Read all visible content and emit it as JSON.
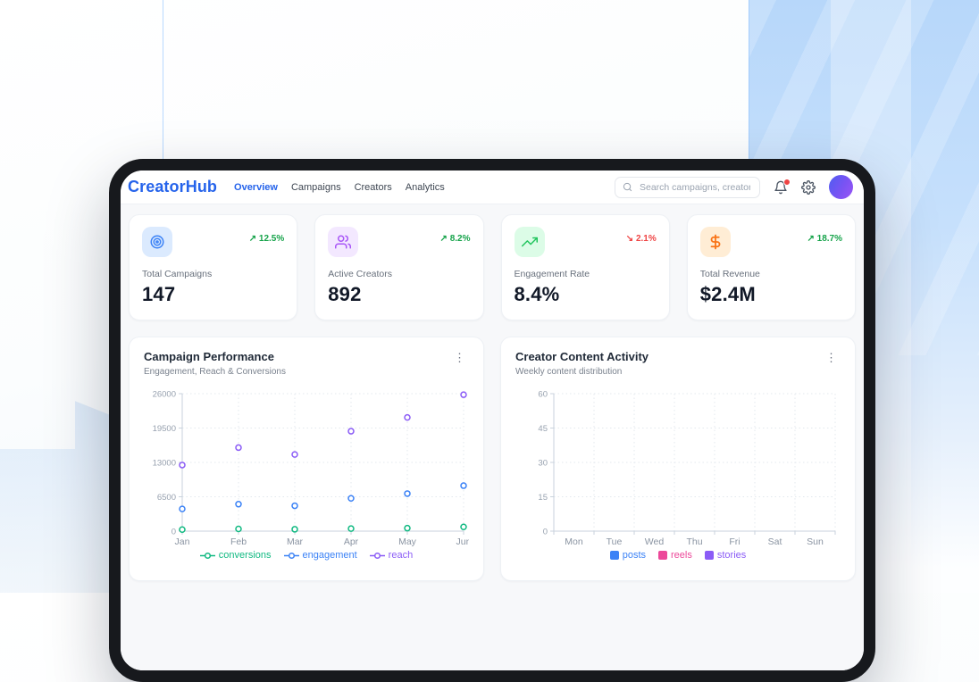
{
  "colors": {
    "accent": "#2563eb",
    "positive": "#16a34a",
    "negative": "#ef4444",
    "frame": "#17191d",
    "bg_blue": "#b7d7fa"
  },
  "icons": {
    "kebab": "⋮"
  },
  "header": {
    "logo": "CreatorHub",
    "nav": [
      {
        "label": "Overview",
        "active": true
      },
      {
        "label": "Campaigns",
        "active": false
      },
      {
        "label": "Creators",
        "active": false
      },
      {
        "label": "Analytics",
        "active": false
      }
    ],
    "search": {
      "placeholder": "Search campaigns, creators..."
    },
    "has_notification_dot": true
  },
  "stats": [
    {
      "label": "Total Campaigns",
      "value": "147",
      "trend_icon": "↗",
      "change": "12.5%",
      "direction": "up",
      "icon": "target",
      "icon_color": "#3b82f6",
      "icon_bg": "#dbeafe"
    },
    {
      "label": "Active Creators",
      "value": "892",
      "trend_icon": "↗",
      "change": "8.2%",
      "direction": "up",
      "icon": "users",
      "icon_color": "#a855f7",
      "icon_bg": "#f3e8ff"
    },
    {
      "label": "Engagement Rate",
      "value": "8.4%",
      "trend_icon": "↘",
      "change": "2.1%",
      "direction": "down",
      "icon": "trending-up",
      "icon_color": "#22c55e",
      "icon_bg": "#dcfce7"
    },
    {
      "label": "Total Revenue",
      "value": "$2.4M",
      "trend_icon": "↗",
      "change": "18.7%",
      "direction": "up",
      "icon": "dollar-sign",
      "icon_color": "#f97316",
      "icon_bg": "#ffedd5"
    }
  ],
  "chart_data": [
    {
      "type": "scatter",
      "title": "Campaign Performance",
      "subtitle": "Engagement, Reach & Conversions",
      "x": [
        "Jan",
        "Feb",
        "Mar",
        "Apr",
        "May",
        "Jun"
      ],
      "series": [
        {
          "name": "conversions",
          "color": "#10b981",
          "values": [
            300,
            420,
            350,
            480,
            560,
            800
          ]
        },
        {
          "name": "engagement",
          "color": "#3b82f6",
          "values": [
            4200,
            5100,
            4800,
            6200,
            7100,
            8600
          ]
        },
        {
          "name": "reach",
          "color": "#8b5cf6",
          "values": [
            12500,
            15800,
            14500,
            18900,
            21500,
            25800
          ]
        }
      ],
      "ylim": [
        0,
        26000
      ],
      "yticks": [
        0,
        6500,
        13000,
        19500,
        26000
      ],
      "grid": "dotted",
      "legend_position": "bottom",
      "marker": "open-circle"
    },
    {
      "type": "bar",
      "title": "Creator Content Activity",
      "subtitle": "Weekly content distribution",
      "x": [
        "Mon",
        "Tue",
        "Wed",
        "Thu",
        "Fri",
        "Sat",
        "Sun"
      ],
      "series": [
        {
          "name": "posts",
          "color": "#3b82f6",
          "values": []
        },
        {
          "name": "reels",
          "color": "#ec4899",
          "values": []
        },
        {
          "name": "stories",
          "color": "#8b5cf6",
          "values": []
        }
      ],
      "ylim": [
        0,
        60
      ],
      "yticks": [
        0,
        15,
        30,
        45,
        60
      ],
      "grid": "dotted",
      "legend_position": "bottom",
      "note_bars_rendered": false
    }
  ]
}
